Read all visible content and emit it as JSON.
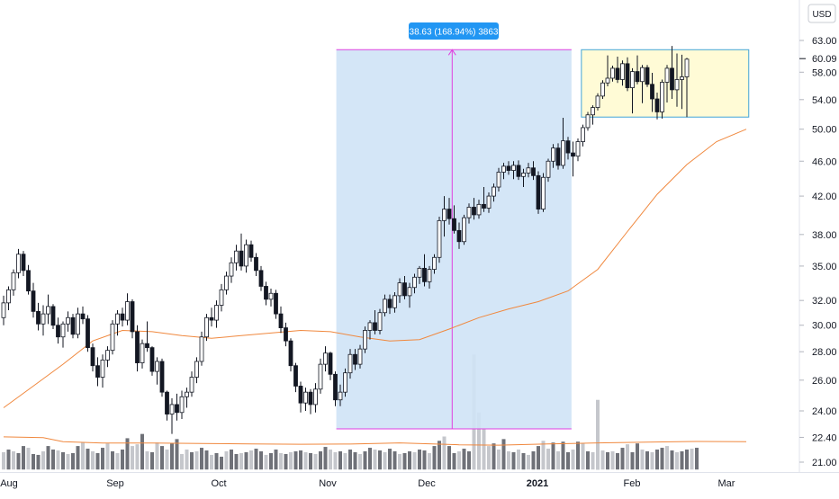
{
  "currency_button": "USD",
  "colors": {
    "background": "#ffffff",
    "candle_up_fill": "#ffffff",
    "candle_down_fill": "#131722",
    "candle_outline": "#131722",
    "moving_average": "#f0883e",
    "measure_fill": "#cfe3f6",
    "measure_line": "#e040e0",
    "measure_label_bg": "#2196f3",
    "range_box_fill": "#fffbd6",
    "range_box_border": "#42a5d6",
    "volume_up": "#c5c7cc",
    "volume_down": "#6f7178",
    "volume_ma": "#f0883e",
    "grid": "#f0f3fa",
    "axis_text": "#131722"
  },
  "chart_data": {
    "type": "candlestick",
    "y_axis": {
      "scale": "log",
      "ticks": [
        "63.00",
        "58.00",
        "54.00",
        "50.00",
        "46.00",
        "42.00",
        "38.00",
        "35.00",
        "32.00",
        "30.00",
        "28.00",
        "26.00",
        "24.00",
        "22.40",
        "21.00"
      ],
      "current_price": "60.09",
      "ylim": [
        20.6,
        68
      ]
    },
    "x_axis": {
      "ticks": [
        "Aug",
        "Sep",
        "Oct",
        "Nov",
        "Dec",
        "2021",
        "Feb",
        "Mar"
      ]
    },
    "grid": false,
    "measure_label": "38.63 (168.94%) 3863",
    "measure_range": {
      "from_date": "Nov",
      "from_price": 22.9,
      "to_price": 61.5
    },
    "range_box": {
      "top": 61.5,
      "bottom": 51.6
    },
    "ohlc": [
      [
        30.6,
        32.4,
        30.0,
        31.8
      ],
      [
        31.8,
        33.2,
        31.2,
        32.9
      ],
      [
        32.9,
        34.7,
        32.4,
        34.4
      ],
      [
        34.4,
        36.6,
        33.9,
        36.1
      ],
      [
        36.1,
        36.4,
        34.1,
        34.6
      ],
      [
        34.6,
        35.1,
        32.5,
        32.8
      ],
      [
        32.8,
        33.5,
        30.6,
        31.1
      ],
      [
        31.1,
        31.8,
        29.6,
        30.1
      ],
      [
        30.1,
        31.6,
        29.2,
        30.9
      ],
      [
        30.9,
        32.5,
        30.1,
        31.5
      ],
      [
        31.5,
        31.7,
        29.7,
        30.0
      ],
      [
        30.0,
        30.6,
        28.6,
        29.1
      ],
      [
        29.1,
        30.3,
        28.3,
        30.1
      ],
      [
        30.1,
        31.1,
        29.5,
        30.6
      ],
      [
        30.6,
        30.9,
        29.0,
        29.3
      ],
      [
        29.3,
        31.4,
        29.0,
        30.9
      ],
      [
        30.9,
        31.5,
        30.1,
        30.5
      ],
      [
        30.5,
        30.8,
        28.0,
        28.3
      ],
      [
        28.3,
        28.6,
        26.6,
        27.0
      ],
      [
        27.0,
        27.6,
        25.6,
        26.2
      ],
      [
        26.2,
        27.8,
        25.5,
        27.4
      ],
      [
        27.4,
        28.4,
        26.9,
        28.1
      ],
      [
        28.1,
        30.4,
        27.8,
        30.1
      ],
      [
        30.1,
        31.2,
        29.2,
        30.9
      ],
      [
        30.9,
        31.4,
        29.9,
        30.4
      ],
      [
        30.4,
        32.6,
        30.0,
        31.9
      ],
      [
        31.9,
        32.1,
        29.0,
        29.5
      ],
      [
        29.5,
        30.0,
        26.6,
        27.2
      ],
      [
        27.2,
        28.9,
        26.8,
        28.6
      ],
      [
        28.6,
        30.3,
        28.0,
        28.3
      ],
      [
        28.3,
        28.4,
        26.3,
        26.6
      ],
      [
        26.6,
        27.6,
        25.7,
        27.3
      ],
      [
        27.3,
        27.5,
        24.9,
        25.2
      ],
      [
        25.2,
        25.3,
        23.4,
        23.8
      ],
      [
        23.8,
        24.8,
        22.6,
        24.4
      ],
      [
        24.4,
        25.1,
        23.4,
        23.9
      ],
      [
        23.9,
        25.3,
        23.5,
        24.9
      ],
      [
        24.9,
        25.5,
        24.2,
        25.2
      ],
      [
        25.2,
        26.6,
        24.9,
        26.2
      ],
      [
        26.2,
        27.6,
        25.8,
        27.3
      ],
      [
        27.3,
        29.5,
        27.0,
        29.1
      ],
      [
        29.1,
        30.9,
        28.8,
        30.6
      ],
      [
        30.6,
        31.4,
        29.9,
        30.4
      ],
      [
        30.4,
        32.0,
        29.8,
        31.6
      ],
      [
        31.6,
        33.4,
        31.1,
        32.9
      ],
      [
        32.9,
        34.5,
        32.5,
        34.1
      ],
      [
        34.1,
        35.8,
        33.5,
        35.3
      ],
      [
        35.3,
        37.0,
        34.6,
        36.4
      ],
      [
        36.4,
        38.1,
        34.6,
        35.0
      ],
      [
        35.0,
        37.5,
        34.4,
        37.0
      ],
      [
        37.0,
        37.4,
        35.4,
        35.8
      ],
      [
        35.8,
        36.2,
        34.1,
        34.6
      ],
      [
        34.6,
        35.0,
        32.8,
        33.2
      ],
      [
        33.2,
        33.6,
        31.6,
        32.1
      ],
      [
        32.1,
        33.0,
        31.5,
        32.6
      ],
      [
        32.6,
        32.9,
        30.5,
        30.9
      ],
      [
        30.9,
        31.5,
        29.4,
        29.8
      ],
      [
        29.8,
        30.2,
        28.4,
        28.8
      ],
      [
        28.8,
        29.0,
        26.6,
        27.0
      ],
      [
        27.0,
        27.2,
        25.2,
        25.6
      ],
      [
        25.6,
        25.9,
        23.9,
        24.5
      ],
      [
        24.5,
        25.5,
        24.0,
        25.2
      ],
      [
        25.2,
        25.4,
        23.8,
        24.4
      ],
      [
        24.4,
        25.8,
        23.9,
        25.4
      ],
      [
        25.4,
        27.5,
        25.1,
        27.1
      ],
      [
        27.1,
        28.4,
        26.6,
        27.9
      ],
      [
        27.9,
        28.0,
        26.0,
        26.4
      ],
      [
        26.4,
        26.6,
        24.3,
        24.7
      ],
      [
        24.7,
        25.7,
        24.3,
        25.2
      ],
      [
        25.2,
        26.8,
        24.9,
        26.5
      ],
      [
        26.5,
        28.2,
        26.1,
        27.8
      ],
      [
        27.8,
        28.2,
        26.7,
        27.1
      ],
      [
        27.1,
        28.5,
        26.8,
        28.2
      ],
      [
        28.2,
        29.9,
        27.9,
        29.6
      ],
      [
        29.6,
        30.4,
        28.9,
        30.2
      ],
      [
        30.2,
        31.2,
        29.3,
        29.6
      ],
      [
        29.6,
        31.3,
        29.3,
        31.0
      ],
      [
        31.0,
        32.5,
        30.7,
        32.1
      ],
      [
        32.1,
        32.5,
        30.9,
        31.4
      ],
      [
        31.4,
        32.7,
        31.0,
        32.4
      ],
      [
        32.4,
        33.9,
        31.8,
        33.5
      ],
      [
        33.5,
        34.1,
        32.1,
        32.4
      ],
      [
        32.4,
        33.5,
        31.4,
        33.1
      ],
      [
        33.1,
        34.3,
        32.6,
        34.0
      ],
      [
        34.0,
        35.0,
        33.4,
        34.8
      ],
      [
        34.8,
        36.1,
        33.2,
        33.6
      ],
      [
        33.6,
        35.0,
        33.0,
        34.7
      ],
      [
        34.7,
        36.1,
        34.3,
        35.8
      ],
      [
        35.8,
        39.8,
        35.3,
        39.4
      ],
      [
        39.4,
        42.0,
        37.8,
        40.6
      ],
      [
        40.6,
        41.8,
        39.0,
        39.6
      ],
      [
        39.6,
        41.0,
        38.1,
        38.4
      ],
      [
        38.4,
        39.2,
        36.6,
        37.3
      ],
      [
        37.3,
        40.0,
        37.0,
        39.7
      ],
      [
        39.7,
        41.2,
        39.1,
        40.8
      ],
      [
        40.8,
        41.8,
        39.5,
        40.0
      ],
      [
        40.0,
        41.6,
        39.6,
        41.1
      ],
      [
        41.1,
        43.0,
        40.3,
        40.7
      ],
      [
        40.7,
        42.4,
        40.2,
        42.0
      ],
      [
        42.0,
        43.4,
        41.4,
        43.0
      ],
      [
        43.0,
        45.2,
        42.5,
        44.7
      ],
      [
        44.7,
        45.8,
        43.9,
        45.4
      ],
      [
        45.4,
        46.0,
        44.4,
        44.9
      ],
      [
        44.9,
        46.0,
        43.9,
        45.5
      ],
      [
        45.5,
        46.1,
        43.8,
        44.2
      ],
      [
        44.2,
        45.1,
        43.0,
        44.6
      ],
      [
        44.6,
        45.8,
        44.1,
        45.2
      ],
      [
        45.2,
        46.0,
        43.8,
        44.3
      ],
      [
        44.3,
        44.8,
        40.1,
        40.6
      ],
      [
        40.6,
        44.6,
        40.3,
        44.1
      ],
      [
        44.1,
        46.3,
        43.6,
        46.0
      ],
      [
        46.0,
        48.1,
        45.2,
        47.6
      ],
      [
        47.6,
        48.2,
        45.0,
        45.5
      ],
      [
        45.5,
        51.5,
        45.1,
        48.5
      ],
      [
        48.5,
        49.0,
        46.2,
        47.0
      ],
      [
        47.0,
        48.4,
        44.2,
        46.6
      ],
      [
        46.6,
        48.8,
        46.0,
        48.4
      ],
      [
        48.4,
        50.6,
        47.8,
        50.2
      ],
      [
        50.2,
        52.3,
        49.8,
        51.9
      ],
      [
        51.9,
        53.2,
        50.6,
        52.9
      ],
      [
        52.9,
        54.9,
        52.5,
        54.5
      ],
      [
        54.5,
        56.8,
        54.1,
        56.4
      ],
      [
        56.4,
        60.6,
        55.9,
        57.1
      ],
      [
        57.1,
        59.0,
        56.6,
        58.6
      ],
      [
        58.6,
        60.4,
        56.4,
        56.9
      ],
      [
        56.9,
        59.8,
        56.0,
        59.3
      ],
      [
        59.3,
        60.3,
        55.2,
        55.7
      ],
      [
        55.7,
        58.6,
        52.1,
        58.1
      ],
      [
        58.1,
        60.6,
        56.2,
        56.6
      ],
      [
        56.6,
        59.1,
        53.5,
        58.7
      ],
      [
        58.7,
        59.1,
        55.8,
        56.2
      ],
      [
        56.2,
        57.9,
        52.3,
        54.1
      ],
      [
        54.1,
        55.0,
        51.3,
        52.3
      ],
      [
        52.3,
        56.9,
        51.4,
        56.5
      ],
      [
        56.5,
        59.1,
        53.6,
        58.6
      ],
      [
        58.6,
        62.1,
        54.1,
        55.4
      ],
      [
        55.4,
        60.9,
        53.0,
        56.9
      ],
      [
        56.9,
        60.7,
        52.7,
        57.3
      ],
      [
        57.3,
        60.2,
        51.6,
        60.0
      ]
    ],
    "ma": [
      [
        0,
        24.2
      ],
      [
        6,
        25.6
      ],
      [
        12,
        27.1
      ],
      [
        18,
        28.8
      ],
      [
        24,
        29.6
      ],
      [
        30,
        29.5
      ],
      [
        36,
        29.2
      ],
      [
        42,
        29.0
      ],
      [
        48,
        29.2
      ],
      [
        54,
        29.4
      ],
      [
        60,
        29.6
      ],
      [
        66,
        29.5
      ],
      [
        72,
        29.1
      ],
      [
        78,
        28.8
      ],
      [
        84,
        28.9
      ],
      [
        90,
        29.7
      ],
      [
        96,
        30.6
      ],
      [
        102,
        31.3
      ],
      [
        108,
        31.9
      ],
      [
        114,
        32.8
      ],
      [
        120,
        34.7
      ],
      [
        126,
        38.3
      ],
      [
        132,
        42.2
      ],
      [
        138,
        45.6
      ],
      [
        144,
        48.4
      ],
      [
        150,
        50.0
      ]
    ],
    "volume_ma": [
      [
        0,
        22.43
      ],
      [
        8,
        22.38
      ],
      [
        12,
        22.15
      ],
      [
        20,
        22.07
      ],
      [
        30,
        22.07
      ],
      [
        40,
        22.05
      ],
      [
        50,
        22.02
      ],
      [
        60,
        22.0
      ],
      [
        70,
        22.01
      ],
      [
        80,
        22.08
      ],
      [
        92,
        21.97
      ],
      [
        100,
        21.95
      ],
      [
        110,
        22.02
      ],
      [
        120,
        22.08
      ],
      [
        130,
        22.12
      ],
      [
        140,
        22.16
      ],
      [
        150,
        22.15
      ]
    ],
    "volume": [
      [
        21.55,
        0
      ],
      [
        21.7,
        1
      ],
      [
        21.6,
        0
      ],
      [
        21.5,
        1
      ],
      [
        21.9,
        1
      ],
      [
        21.8,
        0
      ],
      [
        21.45,
        1
      ],
      [
        21.4,
        1
      ],
      [
        21.6,
        0
      ],
      [
        21.9,
        1
      ],
      [
        21.7,
        1
      ],
      [
        21.65,
        0
      ],
      [
        21.55,
        1
      ],
      [
        21.45,
        0
      ],
      [
        21.5,
        1
      ],
      [
        21.9,
        1
      ],
      [
        22.1,
        0
      ],
      [
        21.75,
        1
      ],
      [
        21.6,
        0
      ],
      [
        21.5,
        1
      ],
      [
        21.8,
        1
      ],
      [
        22.05,
        0
      ],
      [
        21.6,
        1
      ],
      [
        21.5,
        0
      ],
      [
        21.7,
        1
      ],
      [
        22.35,
        1
      ],
      [
        21.9,
        0
      ],
      [
        22.0,
        0
      ],
      [
        22.6,
        1
      ],
      [
        21.6,
        0
      ],
      [
        21.55,
        1
      ],
      [
        22.1,
        0
      ],
      [
        21.9,
        1
      ],
      [
        21.7,
        0
      ],
      [
        22.05,
        1
      ],
      [
        22.3,
        1
      ],
      [
        21.45,
        0
      ],
      [
        21.7,
        0
      ],
      [
        21.55,
        1
      ],
      [
        21.6,
        0
      ],
      [
        21.8,
        1
      ],
      [
        21.65,
        1
      ],
      [
        21.4,
        0
      ],
      [
        21.5,
        1
      ],
      [
        21.3,
        1
      ],
      [
        21.6,
        0
      ],
      [
        21.7,
        1
      ],
      [
        21.45,
        1
      ],
      [
        21.5,
        0
      ],
      [
        21.55,
        1
      ],
      [
        21.65,
        0
      ],
      [
        21.75,
        1
      ],
      [
        21.6,
        1
      ],
      [
        21.4,
        0
      ],
      [
        21.5,
        1
      ],
      [
        21.7,
        1
      ],
      [
        21.5,
        0
      ],
      [
        21.45,
        1
      ],
      [
        21.55,
        0
      ],
      [
        21.6,
        1
      ],
      [
        21.65,
        1
      ],
      [
        21.55,
        0
      ],
      [
        21.5,
        1
      ],
      [
        21.45,
        0
      ],
      [
        21.6,
        1
      ],
      [
        21.85,
        1
      ],
      [
        21.7,
        0
      ],
      [
        21.55,
        0
      ],
      [
        21.6,
        1
      ],
      [
        21.5,
        0
      ],
      [
        21.7,
        1
      ],
      [
        21.55,
        1
      ],
      [
        21.45,
        0
      ],
      [
        21.6,
        1
      ],
      [
        21.8,
        1
      ],
      [
        21.7,
        0
      ],
      [
        21.65,
        1
      ],
      [
        21.55,
        0
      ],
      [
        21.75,
        1
      ],
      [
        21.6,
        1
      ],
      [
        21.45,
        0
      ],
      [
        21.5,
        1
      ],
      [
        21.6,
        1
      ],
      [
        21.55,
        0
      ],
      [
        21.7,
        1
      ],
      [
        21.65,
        1
      ],
      [
        21.5,
        0
      ],
      [
        21.9,
        1
      ],
      [
        22.2,
        1
      ],
      [
        22.45,
        0
      ],
      [
        21.9,
        1
      ],
      [
        21.5,
        1
      ],
      [
        21.6,
        0
      ],
      [
        21.75,
        1
      ],
      [
        21.6,
        1
      ],
      [
        21.5,
        0
      ],
      [
        21.8,
        1
      ],
      [
        21.65,
        1
      ],
      [
        21.9,
        0
      ],
      [
        22.05,
        1
      ],
      [
        21.7,
        0
      ],
      [
        22.3,
        1
      ],
      [
        21.6,
        0
      ],
      [
        21.55,
        1
      ],
      [
        21.7,
        0
      ],
      [
        21.5,
        1
      ],
      [
        21.4,
        0
      ],
      [
        21.6,
        1
      ],
      [
        21.9,
        1
      ],
      [
        22.2,
        0
      ],
      [
        21.75,
        0
      ],
      [
        22.1,
        1
      ],
      [
        21.6,
        0
      ],
      [
        22.15,
        1
      ],
      [
        21.55,
        1
      ],
      [
        21.7,
        0
      ],
      [
        22.15,
        1
      ],
      [
        22.05,
        0
      ],
      [
        21.6,
        1
      ],
      [
        21.55,
        0
      ],
      [
        21.6,
        1
      ],
      [
        21.65,
        0
      ],
      [
        21.55,
        1
      ],
      [
        21.6,
        0
      ],
      [
        21.5,
        1
      ],
      [
        21.8,
        1
      ],
      [
        22.0,
        0
      ],
      [
        21.55,
        1
      ],
      [
        22.05,
        1
      ],
      [
        21.7,
        0
      ],
      [
        21.6,
        1
      ],
      [
        21.55,
        0
      ],
      [
        21.7,
        1
      ],
      [
        21.8,
        1
      ],
      [
        21.9,
        0
      ],
      [
        21.65,
        1
      ],
      [
        21.55,
        0
      ],
      [
        21.6,
        1
      ],
      [
        21.7,
        1
      ],
      [
        21.75,
        0
      ],
      [
        21.8,
        1
      ]
    ],
    "volume_highlights": [
      {
        "index": 95,
        "value": 27.8
      },
      {
        "index": 96,
        "value": 23.9
      },
      {
        "index": 120,
        "value": 24.7
      },
      {
        "index": 97,
        "value": 22.9
      }
    ]
  }
}
